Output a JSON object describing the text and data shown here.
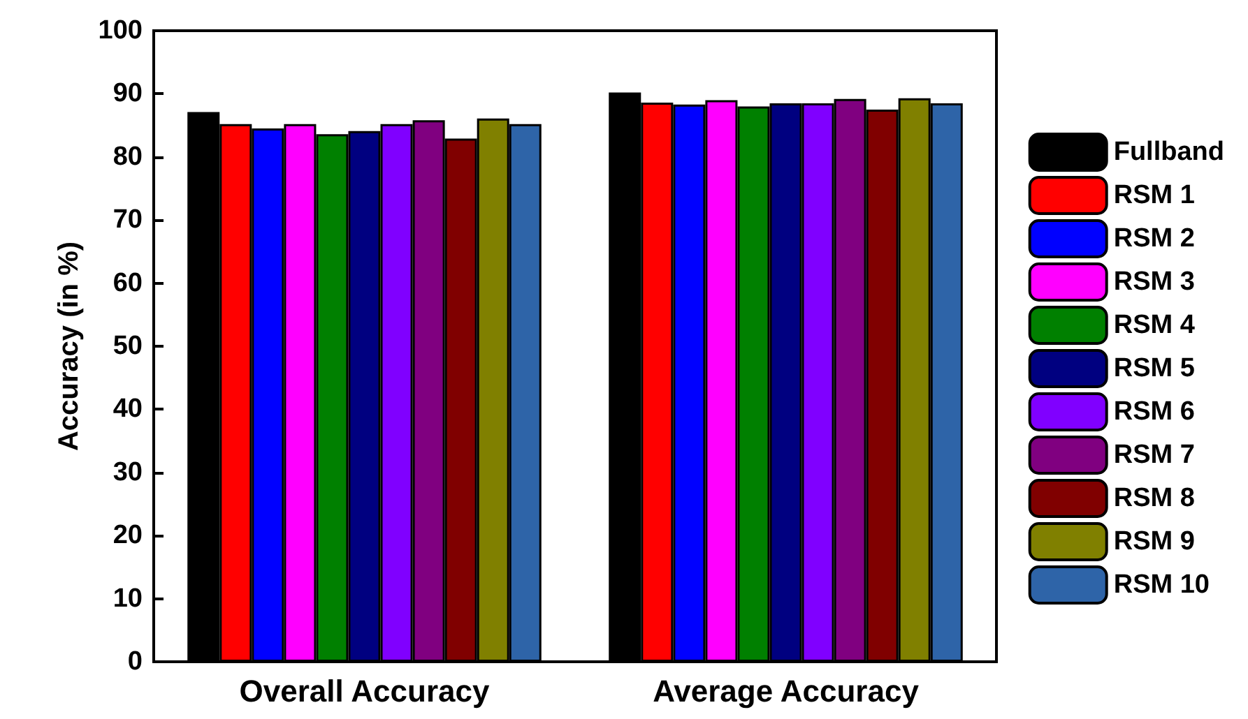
{
  "chart_data": {
    "type": "bar",
    "ylabel": "Accuracy (in %)",
    "categories": [
      "Overall Accuracy",
      "Average Accuracy"
    ],
    "series": [
      {
        "name": "Fullband",
        "color": "#000000",
        "values": [
          87.1,
          90.2
        ]
      },
      {
        "name": "RSM 1",
        "color": "#ff0000",
        "values": [
          85.2,
          88.6
        ]
      },
      {
        "name": "RSM 2",
        "color": "#0000ff",
        "values": [
          84.5,
          88.3
        ]
      },
      {
        "name": "RSM 3",
        "color": "#ff00ff",
        "values": [
          85.2,
          89.0
        ]
      },
      {
        "name": "RSM 4",
        "color": "#008000",
        "values": [
          83.6,
          88.0
        ]
      },
      {
        "name": "RSM 5",
        "color": "#000080",
        "values": [
          84.1,
          88.5
        ]
      },
      {
        "name": "RSM 6",
        "color": "#8000ff",
        "values": [
          85.2,
          88.5
        ]
      },
      {
        "name": "RSM 7",
        "color": "#800080",
        "values": [
          85.8,
          89.2
        ]
      },
      {
        "name": "RSM 8",
        "color": "#800000",
        "values": [
          82.9,
          87.5
        ]
      },
      {
        "name": "RSM 9",
        "color": "#808000",
        "values": [
          86.1,
          89.3
        ]
      },
      {
        "name": "RSM 10",
        "color": "#2e64a8",
        "values": [
          85.2,
          88.5
        ]
      }
    ],
    "ylim": [
      0,
      100
    ],
    "yticks": [
      0,
      10,
      20,
      30,
      40,
      50,
      60,
      70,
      80,
      90,
      100
    ],
    "grid": false,
    "legend": "right"
  }
}
